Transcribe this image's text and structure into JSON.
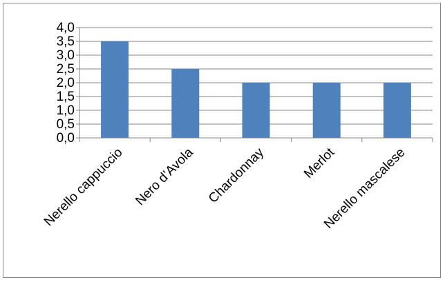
{
  "chart_data": {
    "type": "bar",
    "categories": [
      "Nerello cappuccio",
      "Nero d’Avola",
      "Chardonnay",
      "Merlot",
      "Nerello mascalese"
    ],
    "values": [
      3.5,
      2.5,
      2.0,
      2.0,
      2.0
    ],
    "ylim": [
      0,
      4
    ],
    "yticks": [
      "0,0",
      "0,5",
      "1,0",
      "1,5",
      "2,0",
      "2,5",
      "3,0",
      "3,5",
      "4,0"
    ],
    "grid": true,
    "legend": "none",
    "bar_color": "#4F81BD",
    "title": "",
    "xlabel": "",
    "ylabel": ""
  }
}
